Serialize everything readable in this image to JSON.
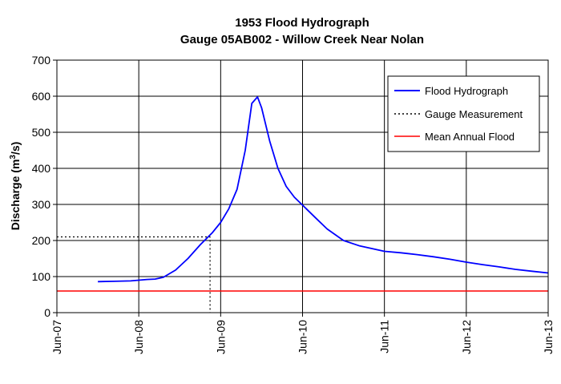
{
  "chart_data": {
    "type": "line",
    "title": "1953 Flood Hydrograph",
    "subtitle": "Gauge 05AB002 - Willow Creek Near Nolan",
    "ylabel_main": "Discharge (m",
    "ylabel_sup": "3",
    "ylabel_end": "/s)",
    "xlabel": "",
    "ylim": [
      0,
      700
    ],
    "yticks": [
      0,
      100,
      200,
      300,
      400,
      500,
      600,
      700
    ],
    "xlim": [
      "Jun-07",
      "Jun-13"
    ],
    "xticks": [
      "Jun-07",
      "Jun-08",
      "Jun-09",
      "Jun-10",
      "Jun-11",
      "Jun-12",
      "Jun-13"
    ],
    "grid": true,
    "legend_position": "top-right",
    "colors": {
      "hydrograph": "#0000ff",
      "gauge": "#000000",
      "mean_flood": "#ff0000",
      "grid": "#000000"
    },
    "series": [
      {
        "name": "Flood Hydrograph",
        "style": "solid",
        "x": [
          7.5,
          7.7,
          7.9,
          8.0,
          8.1,
          8.2,
          8.3,
          8.45,
          8.6,
          8.75,
          8.9,
          9.0,
          9.1,
          9.2,
          9.3,
          9.38,
          9.45,
          9.5,
          9.6,
          9.7,
          9.8,
          9.9,
          10.0,
          10.15,
          10.3,
          10.5,
          10.7,
          11.0,
          11.2,
          11.4,
          11.6,
          11.8,
          12.0,
          12.2,
          12.4,
          12.6,
          12.8,
          13.0
        ],
        "y": [
          86,
          87,
          88,
          90,
          92,
          93,
          98,
          118,
          150,
          188,
          222,
          250,
          288,
          342,
          450,
          580,
          598,
          568,
          475,
          400,
          350,
          320,
          298,
          265,
          232,
          200,
          185,
          170,
          166,
          161,
          155,
          148,
          140,
          133,
          127,
          120,
          115,
          110
        ]
      },
      {
        "name": "Gauge Measurement",
        "style": "dotted",
        "x": [
          7.0,
          8.87,
          8.87
        ],
        "y": [
          210,
          210,
          0
        ]
      },
      {
        "name": "Mean Annual Flood",
        "style": "solid",
        "x": [
          7.0,
          13.0
        ],
        "y": [
          60,
          60
        ]
      }
    ]
  }
}
